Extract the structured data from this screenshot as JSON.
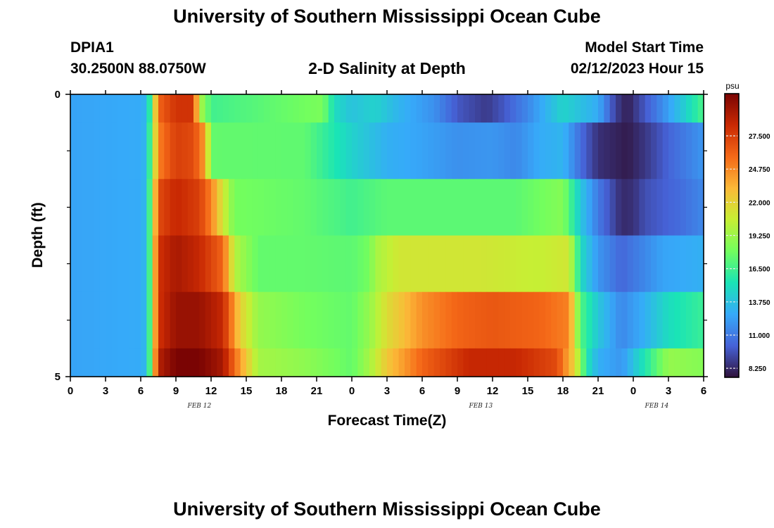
{
  "page": {
    "title": "University of Southern Mississippi Ocean Cube",
    "bottom_title": "University of Southern Mississippi Ocean Cube",
    "station_id": "DPIA1",
    "station_coords": "30.2500N  88.0750W",
    "plot_title": "2-D Salinity at Depth",
    "model_label": "Model Start Time",
    "model_time": "02/12/2023 Hour 15"
  },
  "chart_data": {
    "type": "heatmap",
    "title": "2-D Salinity at Depth",
    "xlabel": "Forecast Time(Z)",
    "ylabel": "Depth (ft)",
    "x_range_hours": [
      0,
      54
    ],
    "y_range_ft": [
      0,
      5
    ],
    "x_ticks": [
      {
        "hour": 0,
        "label": "0"
      },
      {
        "hour": 3,
        "label": "3"
      },
      {
        "hour": 6,
        "label": "6"
      },
      {
        "hour": 9,
        "label": "9"
      },
      {
        "hour": 12,
        "label": "12"
      },
      {
        "hour": 15,
        "label": "15"
      },
      {
        "hour": 18,
        "label": "18"
      },
      {
        "hour": 21,
        "label": "21"
      },
      {
        "hour": 24,
        "label": "0"
      },
      {
        "hour": 27,
        "label": "3"
      },
      {
        "hour": 30,
        "label": "6"
      },
      {
        "hour": 33,
        "label": "9"
      },
      {
        "hour": 36,
        "label": "12"
      },
      {
        "hour": 39,
        "label": "15"
      },
      {
        "hour": 42,
        "label": "18"
      },
      {
        "hour": 45,
        "label": "21"
      },
      {
        "hour": 48,
        "label": "0"
      },
      {
        "hour": 51,
        "label": "3"
      },
      {
        "hour": 54,
        "label": "6"
      }
    ],
    "date_labels": [
      {
        "hour": 11,
        "label": "FEB 12"
      },
      {
        "hour": 35,
        "label": "FEB 13"
      },
      {
        "hour": 50,
        "label": "FEB 14"
      }
    ],
    "y_ticks": [
      {
        "depth": 0,
        "label": "0"
      },
      {
        "depth": 5,
        "label": "5"
      }
    ],
    "y_minor_ticks": [
      1,
      2,
      3,
      4
    ],
    "colorbar": {
      "unit": "psu",
      "min": 7.5,
      "max": 31.0,
      "ticks": [
        8.25,
        11.0,
        13.75,
        16.5,
        19.25,
        22.0,
        24.75,
        27.5
      ],
      "tick_labels": [
        "8.250",
        "11.000",
        "13.750",
        "16.500",
        "19.250",
        "22.000",
        "24.750",
        "27.500"
      ],
      "colors": [
        "#30123b",
        "#4662d7",
        "#36aaf9",
        "#1ae4b6",
        "#72fe5e",
        "#c7ef34",
        "#fbb938",
        "#f56918",
        "#c92903",
        "#7a0403"
      ]
    },
    "layers": [
      {
        "depth_range": [
          0,
          0.5
        ],
        "points": [
          [
            0,
            12.5
          ],
          [
            6.2,
            12.8
          ],
          [
            6.8,
            16
          ],
          [
            7.5,
            26
          ],
          [
            9,
            28
          ],
          [
            10.5,
            28
          ],
          [
            11,
            20
          ],
          [
            12,
            16.5
          ],
          [
            16,
            17.2
          ],
          [
            21.5,
            18.2
          ],
          [
            22.5,
            15
          ],
          [
            24,
            13.8
          ],
          [
            26,
            14.5
          ],
          [
            28,
            13.2
          ],
          [
            31,
            11.8
          ],
          [
            33,
            9.8
          ],
          [
            35.5,
            8.8
          ],
          [
            37,
            9.8
          ],
          [
            39,
            11.5
          ],
          [
            42,
            14.6
          ],
          [
            45,
            12.8
          ],
          [
            46.5,
            9
          ],
          [
            47.5,
            7.9
          ],
          [
            48.5,
            9.2
          ],
          [
            50,
            11
          ],
          [
            52,
            13.8
          ],
          [
            54,
            16.8
          ]
        ]
      },
      {
        "depth_range": [
          0.5,
          1.5
        ],
        "points": [
          [
            0,
            12.5
          ],
          [
            6.2,
            12.8
          ],
          [
            6.8,
            16.5
          ],
          [
            7.5,
            25
          ],
          [
            9,
            27.5
          ],
          [
            10.5,
            27
          ],
          [
            11.5,
            24
          ],
          [
            12,
            17.5
          ],
          [
            20,
            17.4
          ],
          [
            22.5,
            15.5
          ],
          [
            24,
            14.5
          ],
          [
            27,
            13
          ],
          [
            30,
            12.5
          ],
          [
            33,
            11.8
          ],
          [
            36,
            12
          ],
          [
            38,
            11.5
          ],
          [
            40,
            12.8
          ],
          [
            42,
            13.2
          ],
          [
            43.5,
            10.5
          ],
          [
            45,
            8.5
          ],
          [
            47.5,
            7.8
          ],
          [
            49,
            8.7
          ],
          [
            51,
            10.2
          ],
          [
            54,
            12
          ]
        ]
      },
      {
        "depth_range": [
          1.5,
          2.5
        ],
        "points": [
          [
            0,
            12.5
          ],
          [
            6.2,
            12.8
          ],
          [
            6.8,
            17
          ],
          [
            7.5,
            27
          ],
          [
            9,
            28.5
          ],
          [
            11,
            27.5
          ],
          [
            12,
            25
          ],
          [
            13,
            21
          ],
          [
            14,
            18
          ],
          [
            20,
            17.5
          ],
          [
            24,
            16.5
          ],
          [
            27,
            17.3
          ],
          [
            32,
            17.3
          ],
          [
            38,
            17.3
          ],
          [
            42,
            18.5
          ],
          [
            43.5,
            14
          ],
          [
            45,
            11
          ],
          [
            47,
            8.3
          ],
          [
            48,
            8.5
          ],
          [
            49,
            9.5
          ],
          [
            52,
            10.5
          ],
          [
            54,
            11.5
          ]
        ]
      },
      {
        "depth_range": [
          2.5,
          3.5
        ],
        "points": [
          [
            0,
            12.5
          ],
          [
            6.2,
            12.8
          ],
          [
            6.8,
            17
          ],
          [
            7.5,
            28
          ],
          [
            9,
            29.5
          ],
          [
            11,
            28.5
          ],
          [
            13,
            26
          ],
          [
            14,
            20
          ],
          [
            16,
            17.5
          ],
          [
            20,
            17.5
          ],
          [
            24,
            17.3
          ],
          [
            25.5,
            18
          ],
          [
            26,
            19.5
          ],
          [
            28,
            21
          ],
          [
            31,
            21
          ],
          [
            35,
            21
          ],
          [
            40,
            20.5
          ],
          [
            42.5,
            21
          ],
          [
            43.5,
            15
          ],
          [
            45,
            12
          ],
          [
            47,
            10.3
          ],
          [
            49,
            11.5
          ],
          [
            50.5,
            12.5
          ],
          [
            54,
            13
          ]
        ]
      },
      {
        "depth_range": [
          3.5,
          4.5
        ],
        "points": [
          [
            0,
            12.5
          ],
          [
            6.2,
            12.8
          ],
          [
            6.8,
            17
          ],
          [
            7.5,
            28
          ],
          [
            9,
            30
          ],
          [
            11,
            30
          ],
          [
            13,
            28.5
          ],
          [
            14.5,
            22
          ],
          [
            16,
            19
          ],
          [
            20,
            18
          ],
          [
            24,
            17.5
          ],
          [
            25.5,
            19
          ],
          [
            27,
            21.5
          ],
          [
            30,
            24.5
          ],
          [
            33,
            26
          ],
          [
            36,
            26.5
          ],
          [
            40,
            26
          ],
          [
            42.5,
            25
          ],
          [
            43.5,
            17
          ],
          [
            45,
            14
          ],
          [
            47,
            11.5
          ],
          [
            49,
            13
          ],
          [
            51,
            15
          ],
          [
            54,
            16.3
          ]
        ]
      },
      {
        "depth_range": [
          4.5,
          5
        ],
        "points": [
          [
            0,
            12.5
          ],
          [
            6.2,
            12.8
          ],
          [
            6.8,
            17
          ],
          [
            7.5,
            29
          ],
          [
            9,
            31
          ],
          [
            11,
            31
          ],
          [
            13,
            29.5
          ],
          [
            14.5,
            24
          ],
          [
            16,
            19.5
          ],
          [
            20,
            18.8
          ],
          [
            24,
            17.5
          ],
          [
            25.5,
            19.5
          ],
          [
            27,
            22.5
          ],
          [
            30,
            26
          ],
          [
            34,
            28.5
          ],
          [
            38,
            28.5
          ],
          [
            41.5,
            27
          ],
          [
            43,
            22
          ],
          [
            44,
            15.5
          ],
          [
            45,
            13
          ],
          [
            47,
            12
          ],
          [
            49,
            15.5
          ],
          [
            51,
            19
          ],
          [
            54,
            18.5
          ]
        ]
      }
    ]
  }
}
